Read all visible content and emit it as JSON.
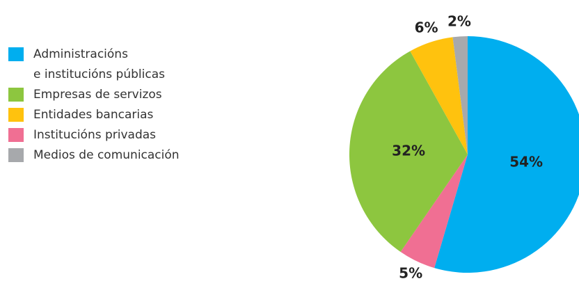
{
  "chart_data": {
    "type": "pie",
    "categories": [
      "Administracións\ne institucións públicas",
      "Empresas de servizos",
      "Entidades bancarias",
      "Institucións privadas",
      "Medios de comunicación"
    ],
    "values": [
      54,
      32,
      6,
      5,
      2
    ],
    "colors": [
      "#00aeef",
      "#8dc63f",
      "#ffc20e",
      "#f06f93",
      "#a7a9ac"
    ],
    "value_labels": [
      "54%",
      "32%",
      "6%",
      "5%",
      "2%"
    ],
    "draw_order": [
      0,
      3,
      1,
      2,
      4
    ]
  }
}
